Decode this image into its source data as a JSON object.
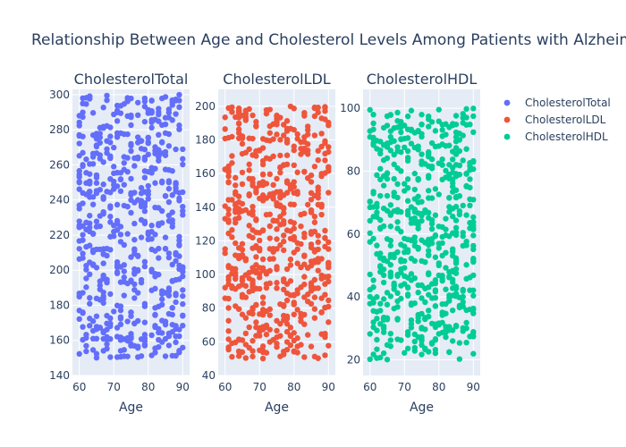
{
  "chart_data": {
    "type": "scatter",
    "title": "Relationship Between Age and Cholesterol Levels Among Patients with Alzheimer's",
    "legend_position": "right",
    "grid": true,
    "panels": [
      {
        "name": "CholesterolTotal",
        "title": "CholesterolTotal",
        "xlabel": "Age",
        "color": "#636efa",
        "xlim": [
          58,
          92
        ],
        "ylim": [
          140,
          303
        ],
        "xticks": [
          60,
          70,
          80,
          90
        ],
        "yticks": [
          140,
          160,
          180,
          200,
          220,
          240,
          260,
          280,
          300
        ],
        "x_range": [
          60,
          90
        ],
        "y_range": [
          150,
          300
        ],
        "n_points": 600
      },
      {
        "name": "CholesterolLDL",
        "title": "CholesterolLDL",
        "xlabel": "Age",
        "color": "#ef553b",
        "xlim": [
          58,
          92
        ],
        "ylim": [
          40,
          210
        ],
        "xticks": [
          60,
          70,
          80,
          90
        ],
        "yticks": [
          40,
          60,
          80,
          100,
          120,
          140,
          160,
          180,
          200
        ],
        "x_range": [
          60,
          90
        ],
        "y_range": [
          50,
          200
        ],
        "n_points": 600
      },
      {
        "name": "CholesterolHDL",
        "title": "CholesterolHDL",
        "xlabel": "Age",
        "color": "#00cc96",
        "xlim": [
          58,
          92
        ],
        "ylim": [
          15,
          106
        ],
        "xticks": [
          60,
          70,
          80,
          90
        ],
        "yticks": [
          20,
          40,
          60,
          80,
          100
        ],
        "x_range": [
          60,
          90
        ],
        "y_range": [
          20,
          100
        ],
        "n_points": 600
      }
    ],
    "legend": [
      {
        "name": "CholesterolTotal",
        "color": "#636efa"
      },
      {
        "name": "CholesterolLDL",
        "color": "#ef553b"
      },
      {
        "name": "CholesterolHDL",
        "color": "#00cc96"
      }
    ]
  }
}
